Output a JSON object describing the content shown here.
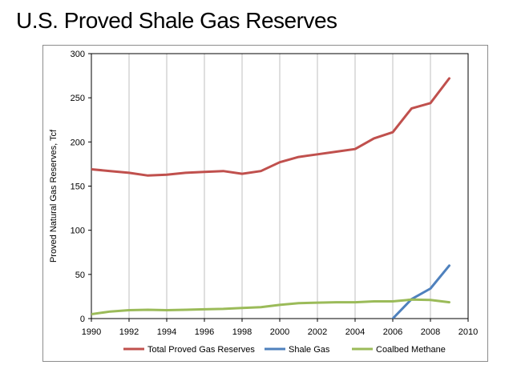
{
  "page": {
    "title": "U.S. Proved Shale Gas Reserves"
  },
  "chart_data": {
    "type": "line",
    "title": "",
    "xlabel": "",
    "ylabel": "Proved Natural Gas Reserves, Tcf",
    "xlim": [
      1990,
      2010
    ],
    "ylim": [
      0,
      300
    ],
    "x_ticks": [
      "1990",
      "1992",
      "1994",
      "1996",
      "1998",
      "2000",
      "2002",
      "2004",
      "2006",
      "2008",
      "2010"
    ],
    "y_ticks": [
      "0",
      "50",
      "100",
      "150",
      "200",
      "250",
      "300"
    ],
    "grid": "vertical",
    "legend_position": "bottom",
    "series": [
      {
        "name": "Total Proved Gas Reserves",
        "color": "#c0504d",
        "points": [
          [
            1990,
            169
          ],
          [
            1991,
            167
          ],
          [
            1992,
            165
          ],
          [
            1993,
            162
          ],
          [
            1994,
            163
          ],
          [
            1995,
            165
          ],
          [
            1996,
            166
          ],
          [
            1997,
            167
          ],
          [
            1998,
            164
          ],
          [
            1999,
            167
          ],
          [
            2000,
            177
          ],
          [
            2001,
            183
          ],
          [
            2002,
            186
          ],
          [
            2003,
            189
          ],
          [
            2004,
            192
          ],
          [
            2005,
            204
          ],
          [
            2006,
            211
          ],
          [
            2007,
            238
          ],
          [
            2008,
            244
          ],
          [
            2009,
            272
          ]
        ]
      },
      {
        "name": "Shale Gas",
        "color": "#4f81bd",
        "points": [
          [
            2006,
            0
          ],
          [
            2007,
            22
          ],
          [
            2008,
            34
          ],
          [
            2009,
            60
          ]
        ]
      },
      {
        "name": "Coalbed Methane",
        "color": "#9bbb59",
        "points": [
          [
            1990,
            5
          ],
          [
            1991,
            8
          ],
          [
            1992,
            9.5
          ],
          [
            1993,
            10
          ],
          [
            1994,
            9.5
          ],
          [
            1995,
            10
          ],
          [
            1996,
            10.5
          ],
          [
            1997,
            11
          ],
          [
            1998,
            12
          ],
          [
            1999,
            13
          ],
          [
            2000,
            15.5
          ],
          [
            2001,
            17.5
          ],
          [
            2002,
            18
          ],
          [
            2003,
            18.5
          ],
          [
            2004,
            18.5
          ],
          [
            2005,
            19.5
          ],
          [
            2006,
            19.5
          ],
          [
            2007,
            21.5
          ],
          [
            2008,
            21
          ],
          [
            2009,
            18.5
          ]
        ]
      }
    ]
  }
}
